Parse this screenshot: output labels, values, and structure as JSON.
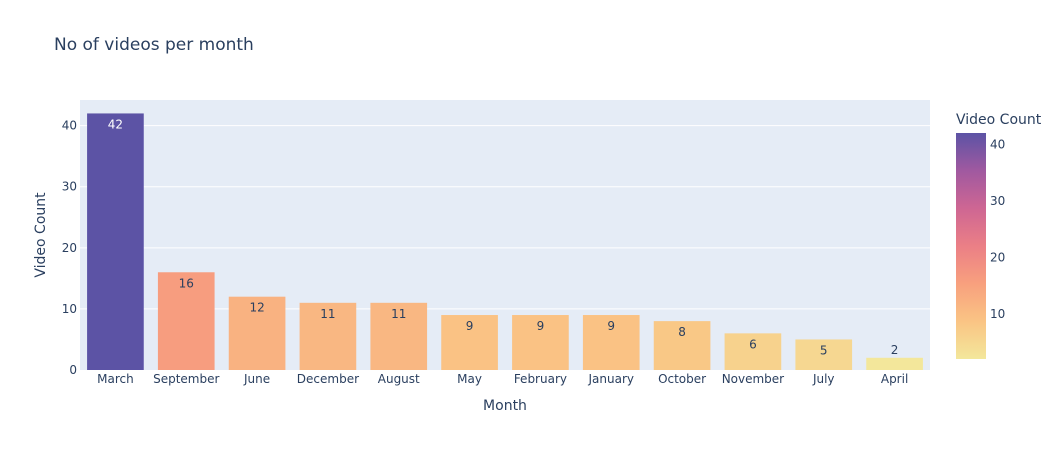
{
  "chart_data": {
    "type": "bar",
    "title": "No of videos per month",
    "xlabel": "Month",
    "ylabel": "Video Count",
    "categories": [
      "March",
      "September",
      "June",
      "December",
      "August",
      "May",
      "February",
      "January",
      "October",
      "November",
      "July",
      "April"
    ],
    "values": [
      42,
      16,
      12,
      11,
      11,
      9,
      9,
      9,
      8,
      6,
      5,
      2
    ],
    "ylim": [
      0,
      44.2
    ],
    "yticks": [
      0,
      10,
      20,
      30,
      40
    ],
    "grid": true,
    "colorbar": {
      "title": "Video Count",
      "ticks": [
        10,
        20,
        30,
        40
      ],
      "range": [
        2,
        42
      ],
      "colorscale": [
        "#f3e79b",
        "#fac484",
        "#f8a07e",
        "#eb7f86",
        "#ce6693",
        "#a059a0",
        "#5c53a5"
      ]
    },
    "colors": {
      "plot_background": "#e5ecf6",
      "gridline": "#ffffff",
      "text": "#2a3f5f"
    }
  }
}
